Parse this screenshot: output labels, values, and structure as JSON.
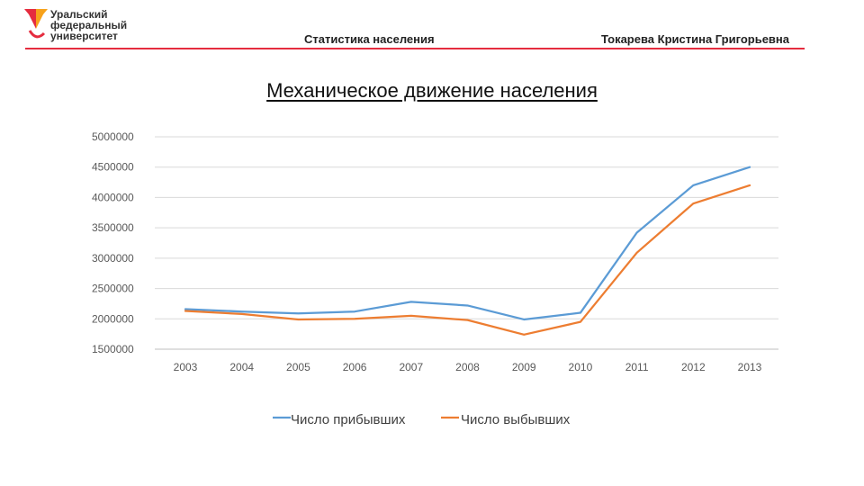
{
  "header": {
    "logo_lines": [
      "Уральский",
      "федеральный",
      "университет"
    ],
    "left_title": "Статистика населения",
    "right_title": "Токарева Кристина Григорьевна",
    "accent_color": "#e52c3f"
  },
  "chart_data": {
    "type": "line",
    "title": "Механическое движение населения",
    "x": [
      "2003",
      "2004",
      "2005",
      "2006",
      "2007",
      "2008",
      "2009",
      "2010",
      "2011",
      "2012",
      "2013"
    ],
    "series": [
      {
        "name": "Число прибывших",
        "color": "#5b9bd5",
        "values": [
          2160000,
          2120000,
          2090000,
          2120000,
          2280000,
          2220000,
          1990000,
          2100000,
          3420000,
          4200000,
          4500000
        ]
      },
      {
        "name": "Число выбывших",
        "color": "#ed7d31",
        "values": [
          2130000,
          2080000,
          1990000,
          2000000,
          2050000,
          1980000,
          1740000,
          1950000,
          3090000,
          3900000,
          4200000
        ]
      }
    ],
    "ylim": [
      1500000,
      5000000
    ],
    "yticks": [
      1500000,
      2000000,
      2500000,
      3000000,
      3500000,
      4000000,
      4500000,
      5000000
    ],
    "grid": true,
    "legend": "bottom"
  }
}
